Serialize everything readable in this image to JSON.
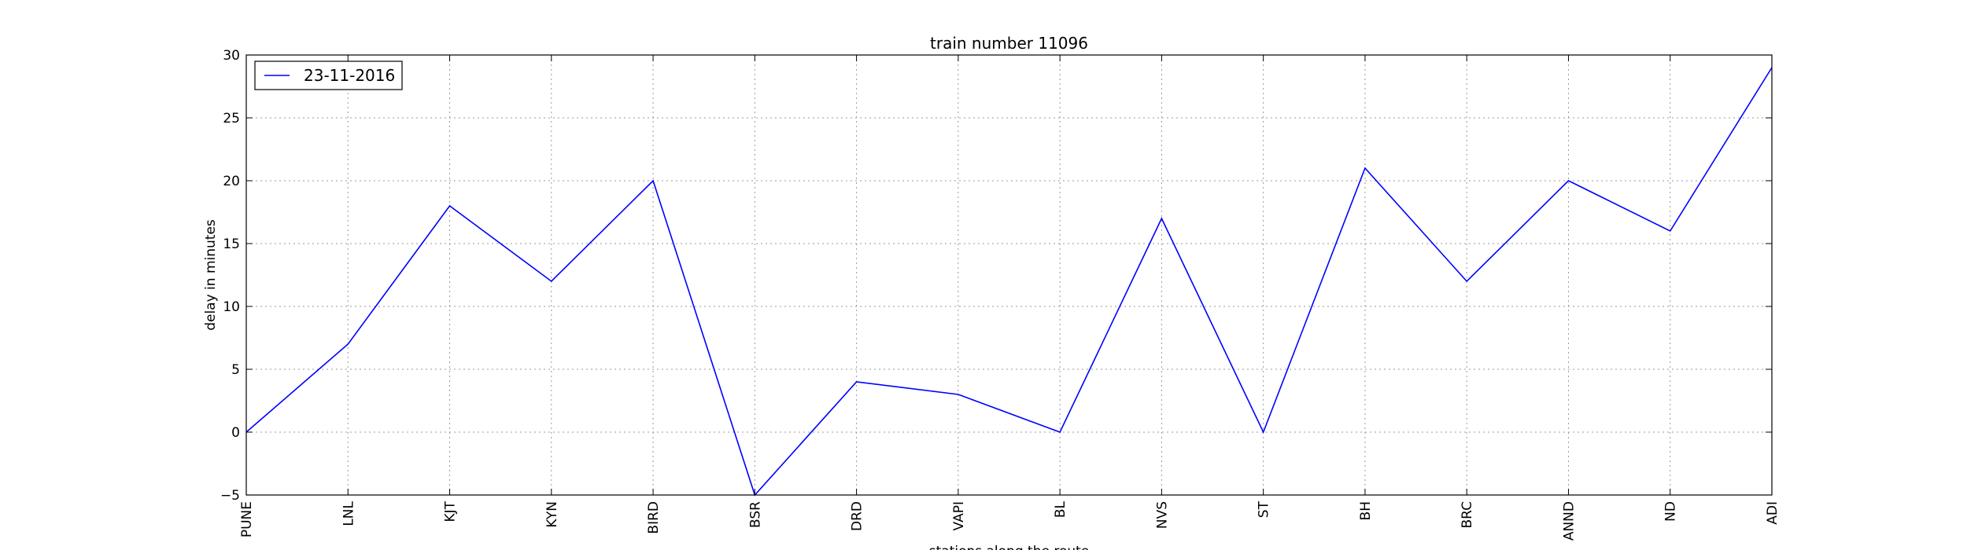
{
  "chart_data": {
    "type": "line",
    "title": "train number 11096",
    "xlabel": "stations along the route",
    "ylabel": "delay in minutes",
    "categories": [
      "PUNE",
      "LNL",
      "KJT",
      "KYN",
      "BIRD",
      "BSR",
      "DRD",
      "VAPI",
      "BL",
      "NVS",
      "ST",
      "BH",
      "BRC",
      "ANND",
      "ND",
      "ADI"
    ],
    "series": [
      {
        "name": "23-11-2016",
        "color": "#0000ff",
        "values": [
          0,
          7,
          18,
          12,
          20,
          -5,
          4,
          3,
          0,
          17,
          0,
          21,
          12,
          20,
          16,
          29
        ]
      }
    ],
    "ylim": [
      -5,
      30
    ],
    "yticks": [
      -5,
      0,
      5,
      10,
      15,
      20,
      25,
      30
    ],
    "grid": true,
    "legend_position": "top-left"
  }
}
